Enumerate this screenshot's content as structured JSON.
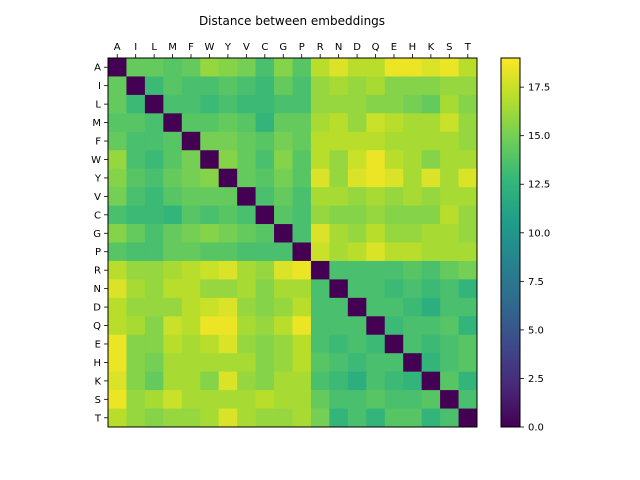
{
  "chart_data": {
    "type": "heatmap",
    "title": "Distance between embeddings",
    "labels": [
      "A",
      "I",
      "L",
      "M",
      "F",
      "W",
      "Y",
      "V",
      "C",
      "G",
      "P",
      "R",
      "N",
      "D",
      "Q",
      "E",
      "H",
      "K",
      "S",
      "T"
    ],
    "values": [
      [
        0.0,
        14.5,
        14.5,
        14.0,
        14.5,
        16.0,
        15.5,
        15.0,
        13.5,
        15.5,
        14.0,
        17.0,
        18.0,
        17.0,
        17.0,
        18.5,
        18.5,
        18.0,
        18.5,
        17.0
      ],
      [
        14.5,
        0.0,
        13.0,
        14.0,
        13.5,
        13.5,
        14.0,
        13.5,
        13.0,
        14.5,
        13.5,
        16.0,
        16.5,
        16.0,
        16.5,
        15.5,
        15.5,
        15.5,
        16.0,
        16.0
      ],
      [
        14.5,
        13.0,
        0.0,
        13.5,
        13.5,
        13.0,
        13.5,
        13.0,
        13.0,
        13.5,
        13.5,
        16.0,
        16.0,
        16.0,
        15.5,
        15.5,
        15.0,
        14.5,
        16.5,
        15.5
      ],
      [
        14.0,
        14.0,
        13.5,
        0.0,
        14.0,
        14.0,
        14.5,
        14.0,
        12.5,
        14.5,
        14.5,
        16.5,
        17.0,
        16.0,
        17.5,
        17.0,
        16.5,
        16.5,
        17.5,
        16.0
      ],
      [
        14.5,
        13.5,
        13.5,
        14.0,
        0.0,
        15.0,
        15.0,
        14.5,
        14.0,
        15.0,
        14.5,
        17.0,
        17.0,
        17.0,
        17.0,
        16.5,
        16.5,
        16.5,
        16.5,
        16.0
      ],
      [
        16.0,
        13.5,
        13.0,
        14.0,
        15.0,
        0.0,
        15.5,
        14.5,
        13.5,
        15.5,
        14.0,
        17.0,
        16.0,
        17.5,
        18.5,
        17.0,
        16.5,
        15.5,
        16.5,
        16.5
      ],
      [
        15.5,
        14.0,
        13.5,
        14.5,
        15.0,
        15.5,
        0.0,
        14.5,
        14.0,
        15.0,
        14.0,
        18.0,
        16.0,
        18.0,
        18.5,
        18.0,
        16.5,
        18.0,
        16.5,
        18.0
      ],
      [
        15.0,
        13.5,
        13.0,
        14.0,
        14.5,
        14.5,
        14.5,
        0.0,
        13.5,
        14.5,
        13.5,
        16.5,
        16.5,
        16.0,
        16.5,
        16.0,
        16.5,
        16.0,
        16.5,
        16.5
      ],
      [
        13.5,
        13.0,
        13.0,
        12.5,
        14.0,
        13.5,
        14.0,
        13.5,
        0.0,
        14.0,
        13.5,
        16.0,
        15.5,
        15.5,
        16.0,
        15.5,
        15.5,
        15.5,
        17.0,
        16.0
      ],
      [
        15.5,
        14.5,
        13.5,
        14.5,
        15.0,
        15.5,
        15.0,
        14.5,
        14.0,
        0.0,
        13.5,
        18.0,
        16.5,
        16.0,
        17.0,
        16.0,
        16.0,
        16.5,
        16.5,
        16.0
      ],
      [
        14.0,
        13.5,
        13.5,
        14.5,
        14.5,
        14.0,
        14.0,
        13.5,
        13.5,
        13.5,
        0.0,
        17.5,
        16.5,
        17.0,
        18.0,
        17.0,
        17.0,
        16.5,
        16.5,
        16.5
      ],
      [
        17.0,
        16.0,
        16.0,
        16.5,
        17.0,
        17.5,
        18.0,
        16.5,
        16.0,
        18.0,
        18.5,
        0.0,
        13.5,
        13.5,
        13.5,
        13.5,
        14.0,
        13.5,
        14.5,
        15.0
      ],
      [
        18.0,
        16.5,
        16.0,
        17.0,
        17.0,
        16.0,
        16.0,
        16.5,
        15.5,
        16.5,
        16.5,
        13.5,
        0.0,
        13.5,
        13.5,
        13.0,
        13.5,
        13.0,
        13.5,
        12.5
      ],
      [
        17.0,
        16.0,
        16.0,
        16.0,
        17.0,
        17.5,
        18.0,
        16.0,
        15.5,
        16.0,
        17.0,
        13.5,
        13.5,
        0.0,
        13.5,
        13.5,
        13.0,
        12.0,
        13.5,
        13.5
      ],
      [
        17.0,
        16.5,
        15.5,
        17.5,
        17.0,
        18.5,
        18.5,
        16.5,
        16.0,
        17.0,
        18.5,
        13.5,
        13.5,
        13.5,
        0.0,
        13.0,
        13.5,
        13.5,
        14.0,
        12.5
      ],
      [
        18.5,
        15.5,
        15.5,
        17.0,
        16.5,
        17.0,
        18.0,
        16.0,
        15.5,
        16.0,
        17.0,
        13.5,
        13.0,
        13.5,
        13.0,
        0.0,
        13.5,
        13.0,
        13.5,
        14.0
      ],
      [
        18.5,
        15.5,
        15.0,
        16.5,
        16.5,
        16.5,
        16.5,
        16.5,
        15.5,
        16.0,
        17.0,
        14.0,
        13.5,
        13.0,
        13.5,
        13.5,
        0.0,
        12.5,
        13.5,
        14.0
      ],
      [
        18.0,
        15.5,
        14.5,
        16.5,
        16.5,
        15.5,
        18.0,
        16.0,
        15.5,
        16.5,
        16.5,
        13.5,
        13.0,
        12.0,
        13.5,
        13.0,
        12.5,
        0.0,
        14.0,
        12.5
      ],
      [
        18.5,
        16.0,
        16.5,
        17.5,
        16.5,
        16.5,
        16.5,
        16.5,
        17.0,
        16.5,
        16.5,
        14.5,
        13.5,
        13.5,
        14.0,
        13.5,
        13.5,
        14.0,
        0.0,
        13.5
      ],
      [
        17.0,
        16.0,
        15.5,
        16.0,
        16.0,
        16.5,
        18.0,
        16.5,
        16.0,
        16.0,
        16.5,
        15.0,
        12.5,
        13.5,
        12.5,
        14.0,
        14.0,
        12.5,
        13.5,
        0.0
      ]
    ],
    "colormap": "viridis",
    "vmin": 0.0,
    "vmax": 19.0,
    "colorbar_ticks": [
      "0.0",
      "2.5",
      "5.0",
      "7.5",
      "10.0",
      "12.5",
      "15.0",
      "17.5"
    ],
    "colorbar_tick_values": [
      0.0,
      2.5,
      5.0,
      7.5,
      10.0,
      12.5,
      15.0,
      17.5
    ],
    "x_ticks_position": "top",
    "xlabel": "",
    "ylabel": ""
  }
}
